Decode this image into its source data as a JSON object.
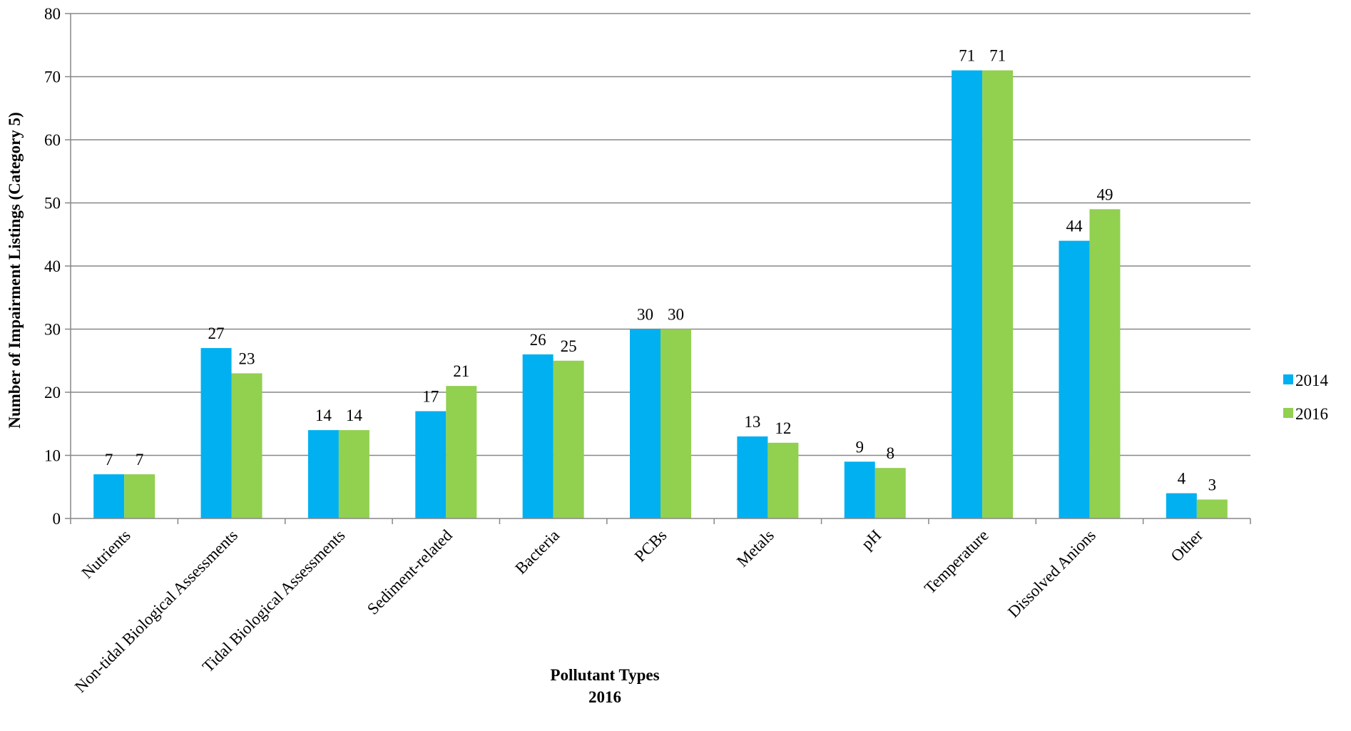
{
  "chart_data": {
    "type": "bar",
    "categories": [
      "Nutrients",
      "Non-tidal Biological Assessments",
      "Tidal Biological Assessments",
      "Sediment-related",
      "Bacteria",
      "PCBs",
      "Metals",
      "pH",
      "Temperature",
      "Dissolved Anions",
      "Other"
    ],
    "series": [
      {
        "name": "2014",
        "color": "#00b0f0",
        "values": [
          7,
          27,
          14,
          17,
          26,
          30,
          13,
          9,
          71,
          44,
          4
        ]
      },
      {
        "name": "2016",
        "color": "#92d050",
        "values": [
          7,
          23,
          14,
          21,
          25,
          30,
          12,
          8,
          71,
          49,
          3
        ]
      }
    ],
    "ylabel": "Number of Impairment Listings (Category 5)",
    "xlabel_line1": "Pollutant Types",
    "xlabel_line2": "2016",
    "ylim": [
      0,
      80
    ],
    "yticks": [
      0,
      10,
      20,
      30,
      40,
      50,
      60,
      70,
      80
    ],
    "grid": true,
    "legend": "right"
  }
}
